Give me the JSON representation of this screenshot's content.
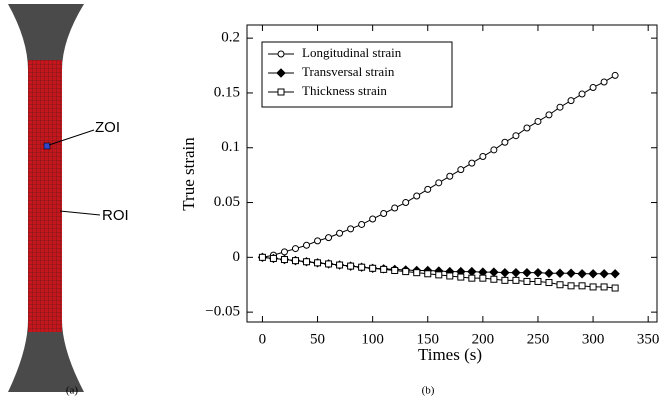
{
  "image_annotations": {
    "zoi": "ZOI",
    "roi": "ROI",
    "panel_a": "(a)",
    "panel_b": "(b)"
  },
  "chart_data": {
    "type": "line",
    "x_label": "Times (s)",
    "y_label": "True strain",
    "x": [
      0,
      10,
      20,
      30,
      40,
      50,
      60,
      70,
      80,
      90,
      100,
      110,
      120,
      130,
      140,
      150,
      160,
      170,
      180,
      190,
      200,
      210,
      220,
      230,
      240,
      250,
      260,
      270,
      280,
      290,
      300,
      310,
      320
    ],
    "series": [
      {
        "name": "Longitudinal strain",
        "color": "#000000",
        "marker": "open-circle",
        "values": [
          0,
          0.002,
          0.005,
          0.008,
          0.011,
          0.015,
          0.018,
          0.022,
          0.026,
          0.03,
          0.035,
          0.04,
          0.045,
          0.05,
          0.056,
          0.062,
          0.068,
          0.074,
          0.08,
          0.086,
          0.092,
          0.098,
          0.105,
          0.111,
          0.118,
          0.124,
          0.13,
          0.137,
          0.143,
          0.149,
          0.155,
          0.16,
          0.166
        ]
      },
      {
        "name": "Transversal strain",
        "color": "#000000",
        "marker": "filled-diamond",
        "values": [
          0,
          -0.001,
          -0.002,
          -0.003,
          -0.004,
          -0.005,
          -0.006,
          -0.007,
          -0.008,
          -0.009,
          -0.01,
          -0.0105,
          -0.011,
          -0.0115,
          -0.012,
          -0.012,
          -0.0125,
          -0.013,
          -0.013,
          -0.013,
          -0.0135,
          -0.0135,
          -0.014,
          -0.014,
          -0.014,
          -0.014,
          -0.0145,
          -0.0145,
          -0.0145,
          -0.015,
          -0.015,
          -0.015,
          -0.015
        ]
      },
      {
        "name": "Thickness strain",
        "color": "#000000",
        "marker": "open-square",
        "values": [
          0,
          -0.001,
          -0.002,
          -0.003,
          -0.004,
          -0.005,
          -0.006,
          -0.007,
          -0.008,
          -0.009,
          -0.01,
          -0.011,
          -0.012,
          -0.013,
          -0.014,
          -0.015,
          -0.016,
          -0.017,
          -0.018,
          -0.019,
          -0.019,
          -0.02,
          -0.021,
          -0.021,
          -0.022,
          -0.022,
          -0.023,
          -0.025,
          -0.026,
          -0.026,
          -0.027,
          -0.027,
          -0.028
        ]
      }
    ],
    "xlim": [
      -14,
      358
    ],
    "ylim": [
      -0.059,
      0.212
    ],
    "xticks": [
      0,
      50,
      100,
      150,
      200,
      250,
      300,
      350
    ],
    "yticks": [
      {
        "value": -0.05,
        "label": "−0.05"
      },
      0,
      0.05,
      0.1,
      0.15,
      0.2
    ],
    "legend": "upper left"
  }
}
